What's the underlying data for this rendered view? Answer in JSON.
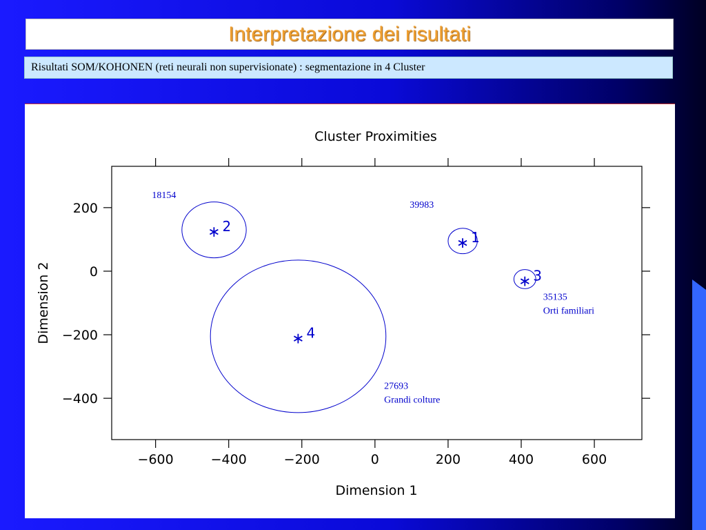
{
  "header": {
    "title": "Interpretazione dei risultati",
    "subtitle": "Risultati  SOM/KOHONEN (reti neurali non supervisionate) : segmentazione in 4 Cluster"
  },
  "colors": {
    "title": "#f0a030",
    "cluster": "#0000cc",
    "background_blue": "#1a1aff"
  },
  "chart_data": {
    "type": "scatter",
    "title": "Cluster Proximities",
    "xlabel": "Dimension 1",
    "ylabel": "Dimension 2",
    "xlim": [
      -720,
      730
    ],
    "ylim": [
      -530,
      330
    ],
    "xticks": [
      -600,
      -400,
      -200,
      0,
      200,
      400,
      600
    ],
    "xtick_labels": [
      "−600",
      "−400",
      "−200",
      "0",
      "200",
      "400",
      "600"
    ],
    "yticks": [
      -400,
      -200,
      0,
      200
    ],
    "ytick_labels": [
      "−400",
      "−200",
      "0",
      "200"
    ],
    "grid": false,
    "clusters": [
      {
        "label": "1",
        "x": 240,
        "y": 95,
        "radius": 40
      },
      {
        "label": "2",
        "x": -440,
        "y": 130,
        "radius": 88
      },
      {
        "label": "3",
        "x": 410,
        "y": -25,
        "radius": 30
      },
      {
        "label": "4",
        "x": -210,
        "y": -205,
        "radius": 240
      }
    ],
    "annotations": [
      {
        "lines": [
          "18154"
        ],
        "x": -610,
        "y": 230
      },
      {
        "lines": [
          "39983"
        ],
        "x": 95,
        "y": 200
      },
      {
        "lines": [
          "35135",
          "Orti familiari"
        ],
        "x": 460,
        "y": -90
      },
      {
        "lines": [
          "27693",
          "Grandi colture"
        ],
        "x": 25,
        "y": -370
      }
    ]
  }
}
